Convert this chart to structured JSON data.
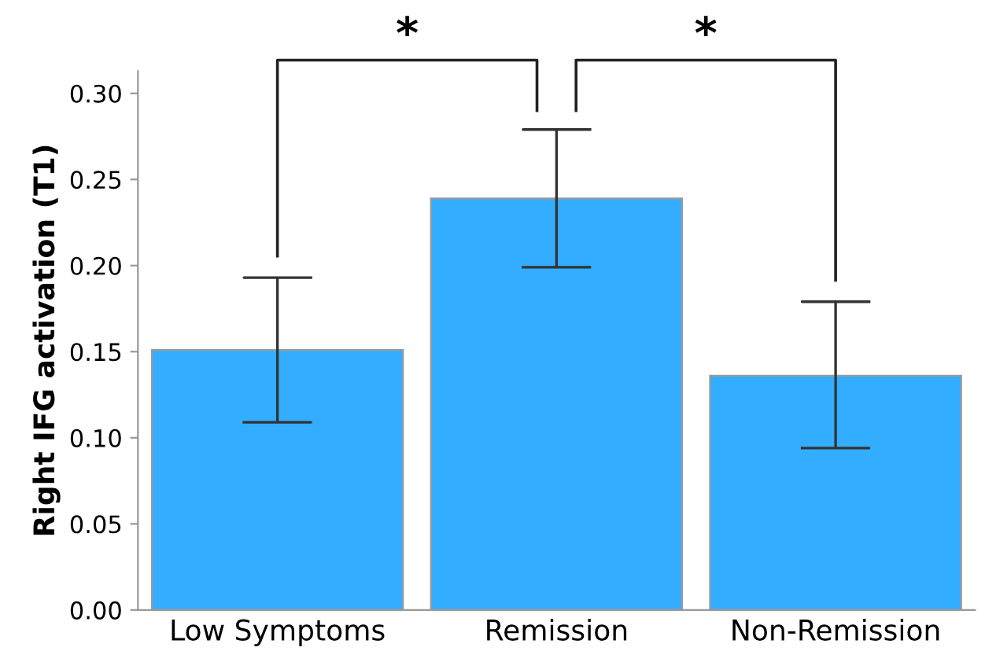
{
  "chart_data": {
    "type": "bar",
    "ylabel": "Right IFG activation (T1)",
    "categories": [
      "Low Symptoms",
      "Remission",
      "Non-Remission"
    ],
    "values": [
      0.151,
      0.239,
      0.136
    ],
    "errors": [
      [
        0.109,
        0.193
      ],
      [
        0.199,
        0.279
      ],
      [
        0.094,
        0.179
      ]
    ],
    "color": "#33adff",
    "ylim": [
      0,
      0.313
    ],
    "yticks": [
      {
        "value": 0,
        "label": "0.00"
      },
      {
        "value": 0.05,
        "label": "0.05"
      },
      {
        "value": 0.1,
        "label": "0.10"
      },
      {
        "value": 0.15,
        "label": "0.15"
      },
      {
        "value": 0.2,
        "label": "0.20"
      },
      {
        "value": 0.25,
        "label": "0.25"
      },
      {
        "value": 0.3,
        "label": "0.30"
      }
    ],
    "annotations": [
      "*",
      "*"
    ],
    "grid": false
  }
}
